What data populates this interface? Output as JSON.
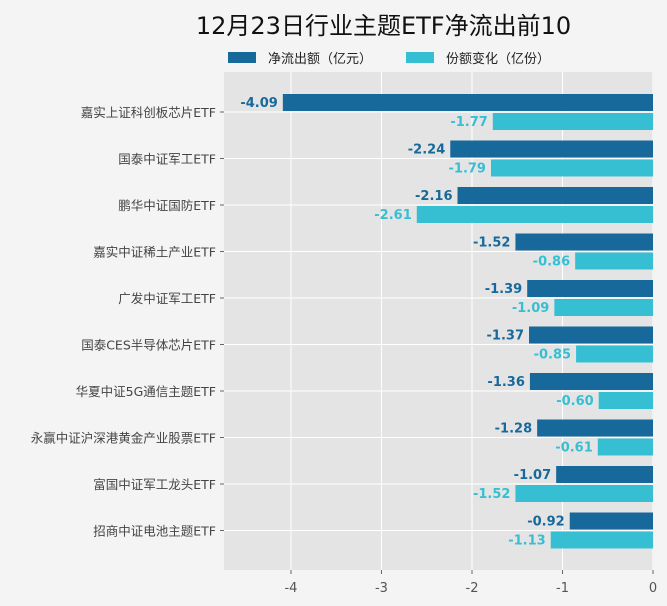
{
  "chart_data": {
    "type": "bar",
    "orientation": "horizontal",
    "title": "12月23日行业主题ETF净流出前10",
    "xlabel": "",
    "ylabel": "",
    "xlim": [
      -4.74,
      0
    ],
    "xticks": [
      -4,
      -3,
      -2,
      -1,
      0
    ],
    "grid": true,
    "legend_position": "top",
    "categories": [
      "嘉实上证科创板芯片ETF",
      "国泰中证军工ETF",
      "鹏华中证国防ETF",
      "嘉实中证稀土产业ETF",
      "广发中证军工ETF",
      "国泰CES半导体芯片ETF",
      "华夏中证5G通信主题ETF",
      "永赢中证沪深港黄金产业股票ETF",
      "富国中证军工龙头ETF",
      "招商中证电池主题ETF"
    ],
    "series": [
      {
        "name": "净流出额（亿元）",
        "color": "#17699b",
        "values": [
          -4.09,
          -2.24,
          -2.16,
          -1.52,
          -1.39,
          -1.37,
          -1.36,
          -1.28,
          -1.07,
          -0.92
        ]
      },
      {
        "name": "份额变化（亿份）",
        "color": "#36bfd3",
        "values": [
          -1.77,
          -1.79,
          -2.61,
          -0.86,
          -1.09,
          -0.85,
          -0.6,
          -0.61,
          -1.52,
          -1.13
        ]
      }
    ]
  }
}
